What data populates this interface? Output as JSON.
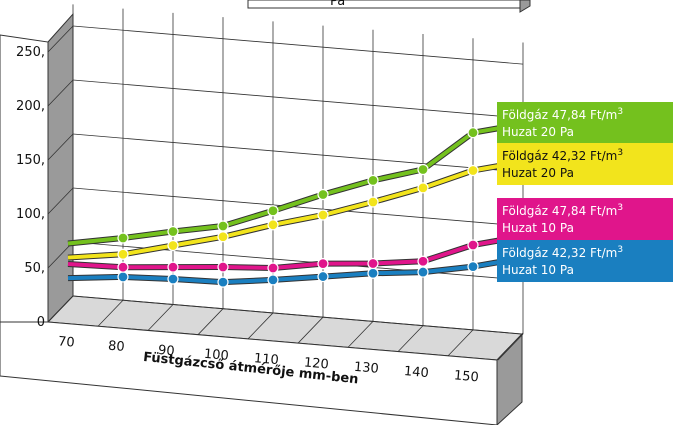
{
  "title_fragment": "Pa",
  "chart_data": {
    "type": "line",
    "xlabel": "Füstgázcső átmérője mm-ben",
    "ylabel": "",
    "categories": [
      "70",
      "80",
      "90",
      "100",
      "110",
      "120",
      "130",
      "140",
      "150"
    ],
    "y_ticks": [
      "0",
      "50",
      "100",
      "150",
      "200",
      "250"
    ],
    "y_tick_suffix": ",",
    "ylim": [
      0,
      250
    ],
    "grid": true,
    "legend_position": "right",
    "series": [
      {
        "name": "Földgáz 47,84 Ft/m3 Huzat 20 Pa",
        "line1": "Földgáz 47,84 Ft/m",
        "sup": "3",
        "line2": "Huzat 20 Pa",
        "color": "#74c11e",
        "text_color": "#ffffff",
        "values": [
          56,
          65,
          75,
          84,
          102,
          121,
          138,
          152,
          190
        ]
      },
      {
        "name": "Földgáz 42,32 Ft/m3 Huzat 20 Pa",
        "line1": "Földgáz 42,32 Ft/m",
        "sup": "3",
        "line2": "Huzat 20 Pa",
        "color": "#f2e41c",
        "text_color": "#111111",
        "values": [
          43,
          50,
          62,
          74,
          89,
          102,
          118,
          135,
          155
        ]
      },
      {
        "name": "Földgáz 47,84 Ft/m3 Huzat 10 Pa",
        "line1": "Földgáz 47,84 Ft/m",
        "sup": "3",
        "line2": "Huzat 10 Pa",
        "color": "#e0158b",
        "text_color": "#ffffff",
        "values": [
          37,
          38,
          42,
          46,
          49,
          57,
          61,
          67,
          86
        ]
      },
      {
        "name": "Földgáz 42,32 Ft/m3 Huzat 10 Pa",
        "line1": "Földgáz 42,32 Ft/m",
        "sup": "3",
        "line2": "Huzat 10 Pa",
        "color": "#1a7fc0",
        "text_color": "#ffffff",
        "values": [
          24,
          29,
          31,
          32,
          38,
          45,
          52,
          57,
          66
        ]
      }
    ]
  }
}
